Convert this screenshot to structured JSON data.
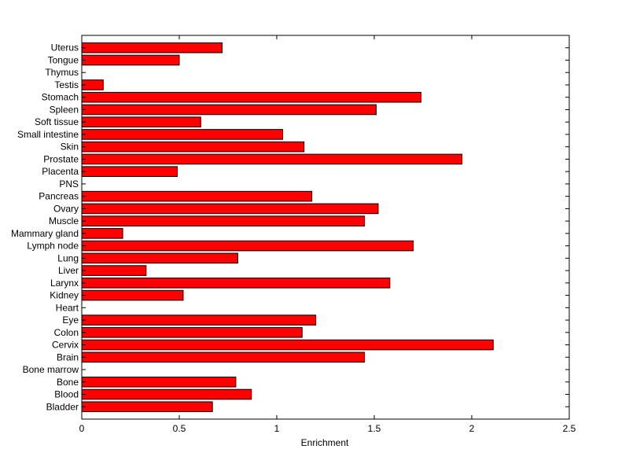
{
  "chart_data": {
    "type": "bar",
    "orientation": "horizontal",
    "xlabel": "Enrichment",
    "ylabel": "",
    "xlim": [
      0,
      2.5
    ],
    "xticks": [
      0,
      0.5,
      1,
      1.5,
      2,
      2.5
    ],
    "xtick_labels": [
      "0",
      "0.5",
      "1",
      "1.5",
      "2",
      "2.5"
    ],
    "grid": false,
    "legend": "none",
    "bar_color": "#ff0000",
    "edge_color": "#000000",
    "categories": [
      "Bladder",
      "Blood",
      "Bone",
      "Bone marrow",
      "Brain",
      "Cervix",
      "Colon",
      "Eye",
      "Heart",
      "Kidney",
      "Larynx",
      "Liver",
      "Lung",
      "Lymph node",
      "Mammary gland",
      "Muscle",
      "Ovary",
      "Pancreas",
      "PNS",
      "Placenta",
      "Prostate",
      "Skin",
      "Small intestine",
      "Soft tissue",
      "Spleen",
      "Stomach",
      "Testis",
      "Thymus",
      "Tongue",
      "Uterus"
    ],
    "values": [
      0.67,
      0.87,
      0.79,
      0,
      1.45,
      2.11,
      1.13,
      1.2,
      0,
      0.52,
      1.58,
      0.33,
      0.8,
      1.7,
      0.21,
      1.45,
      1.52,
      1.18,
      0,
      0.49,
      1.95,
      1.14,
      1.03,
      0.61,
      1.51,
      1.74,
      0.11,
      0,
      0.5,
      0.72
    ]
  }
}
